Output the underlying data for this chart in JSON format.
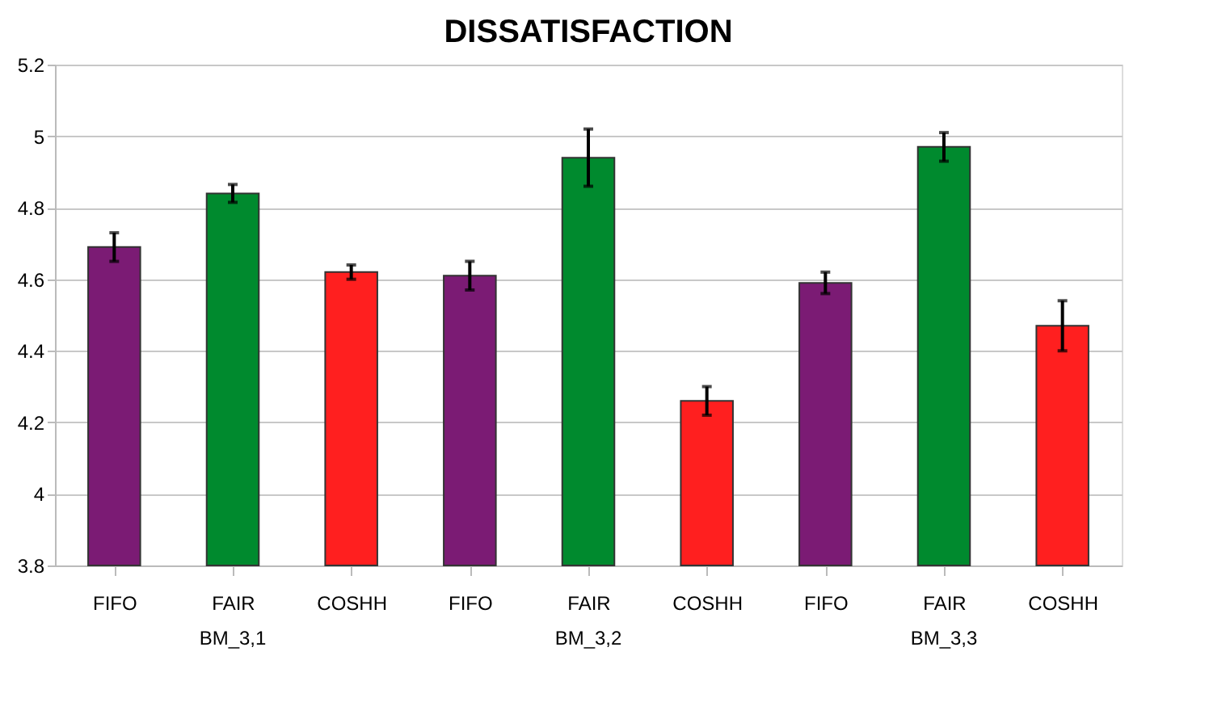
{
  "chart_data": {
    "type": "bar",
    "title": "DISSATISFACTION",
    "categories": [
      "FIFO",
      "FAIR",
      "COSHH",
      "FIFO",
      "FAIR",
      "COSHH",
      "FIFO",
      "FAIR",
      "COSHH"
    ],
    "values": [
      4.69,
      4.84,
      4.62,
      4.61,
      4.94,
      4.26,
      4.59,
      4.97,
      4.47
    ],
    "errors": [
      0.04,
      0.025,
      0.02,
      0.04,
      0.08,
      0.04,
      0.03,
      0.04,
      0.07
    ],
    "colors": [
      "#7b1b74",
      "#008a2e",
      "#ff1f1f",
      "#7b1b74",
      "#008a2e",
      "#ff1f1f",
      "#7b1b74",
      "#008a2e",
      "#ff1f1f"
    ],
    "annotations": [
      "BM_3,1",
      "BM_3,2",
      "BM_3,3"
    ],
    "ylim": [
      3.8,
      5.2
    ],
    "yticks": [
      3.8,
      4,
      4.2,
      4.4,
      4.6,
      4.8,
      5,
      5.2
    ],
    "grid": "y"
  }
}
